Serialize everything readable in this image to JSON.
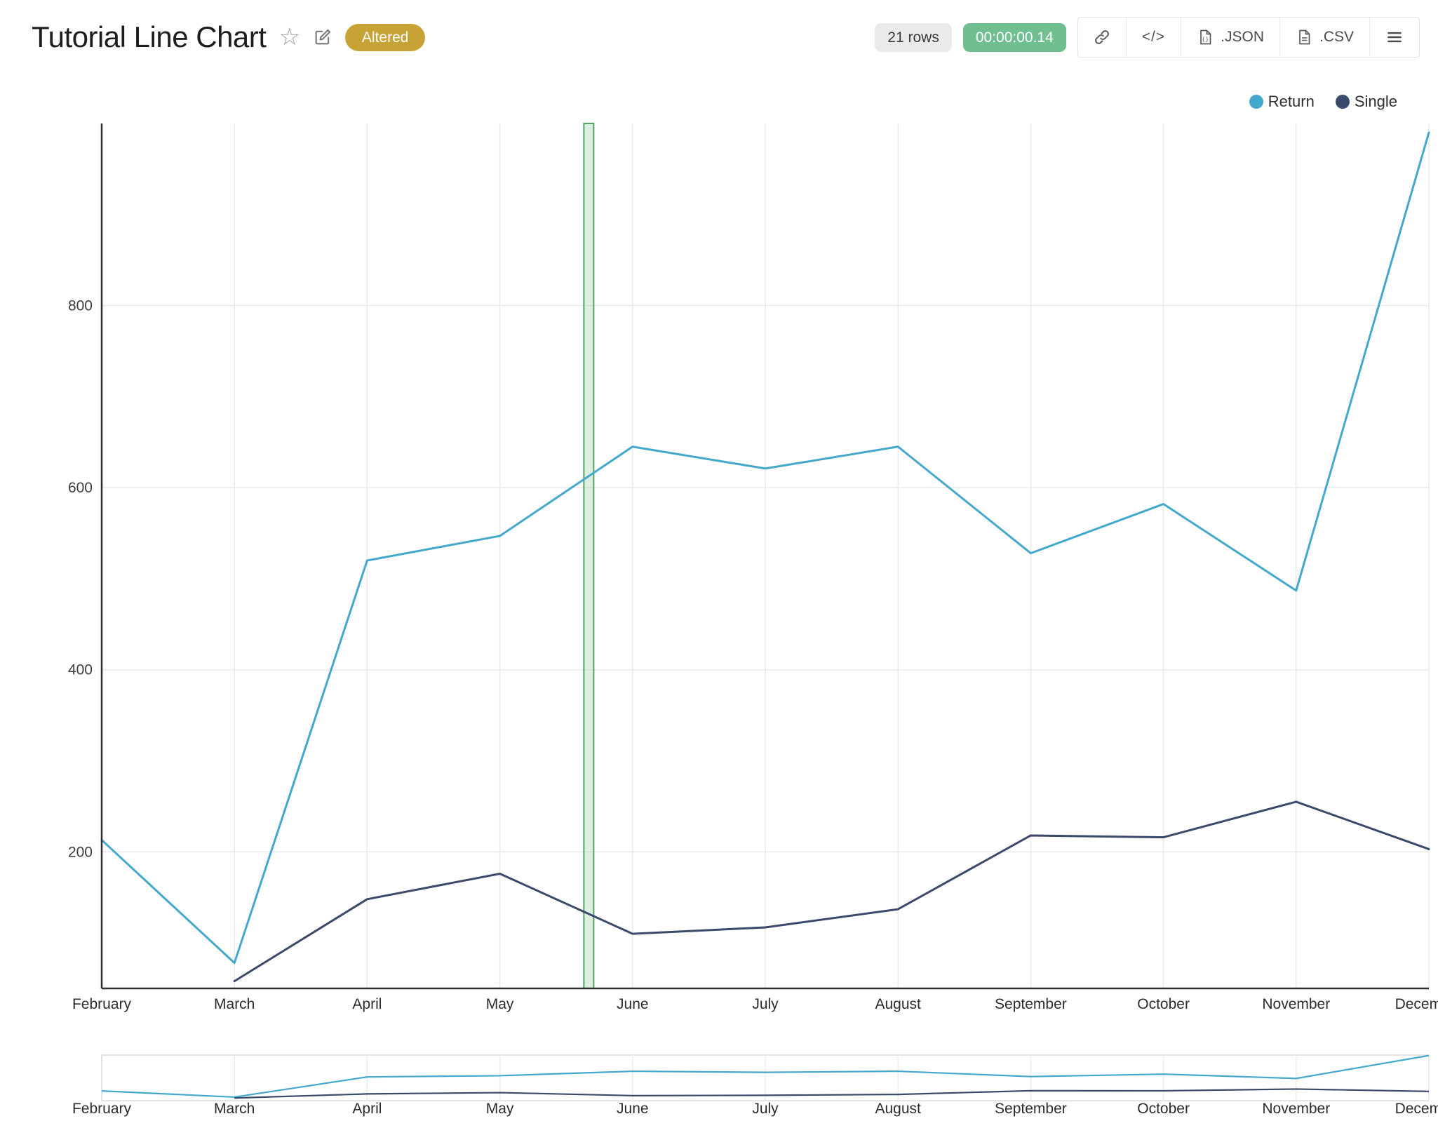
{
  "header": {
    "title": "Tutorial Line Chart",
    "altered_badge": "Altered",
    "rows_badge": "21 rows",
    "timer_badge": "00:00:00.14",
    "buttons": {
      "json_label": ".JSON",
      "csv_label": ".CSV"
    }
  },
  "colors": {
    "altered_badge": "#c7a336",
    "rows_badge": "#eaeaea",
    "timer_badge": "#6fbf90",
    "gridline": "#eaeaea",
    "axis": "#2e2e2e",
    "band_fill": "#7cc08a",
    "band_stroke": "#55a163"
  },
  "chart_data": {
    "type": "line",
    "title": "Tutorial Line Chart",
    "x": [
      "February",
      "March",
      "April",
      "May",
      "June",
      "July",
      "August",
      "September",
      "October",
      "November",
      "December"
    ],
    "series": [
      {
        "name": "Return",
        "color": "#43a8cb",
        "values": [
          213,
          78,
          520,
          547,
          645,
          621,
          645,
          528,
          582,
          487,
          990
        ]
      },
      {
        "name": "Single",
        "color": "#3b4a6b",
        "values": [
          null,
          58,
          148,
          176,
          110,
          117,
          137,
          218,
          216,
          255,
          203
        ]
      }
    ],
    "xlabel": "",
    "ylabel": "",
    "yticks": [
      200,
      400,
      600,
      800
    ],
    "ylim": [
      50,
      1000
    ],
    "grid": true,
    "legend_position": "top-right",
    "legend_entries": [
      "Return",
      "Single"
    ],
    "highlight_band": {
      "x_index": 3.67,
      "width": 14
    },
    "range_slider": true
  }
}
